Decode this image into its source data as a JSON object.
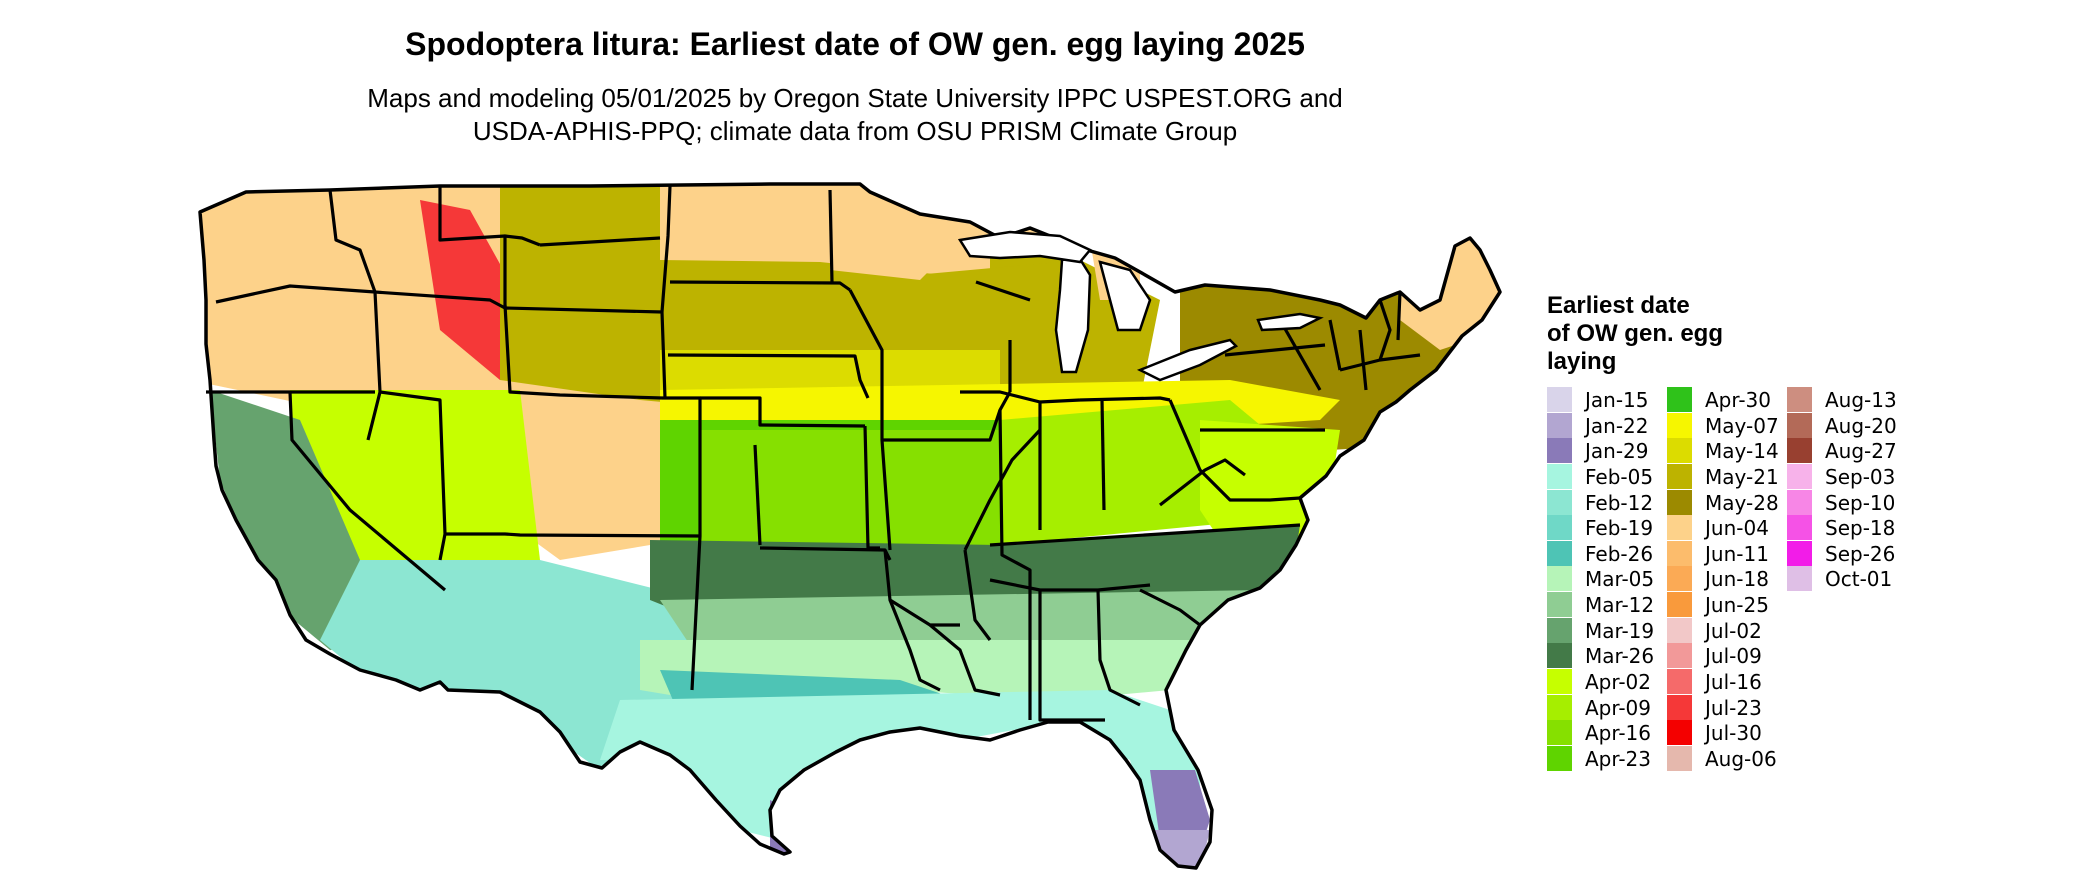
{
  "title": "Spodoptera litura: Earliest date of OW gen. egg laying 2025",
  "subtitle_lines": [
    "Maps and modeling 05/01/2025 by Oregon State University IPPC USPEST.ORG and",
    "USDA-APHIS-PPQ; climate data from OSU PRISM Climate Group"
  ],
  "legend": {
    "title_lines": [
      "Earliest date",
      "of OW gen. egg",
      "laying"
    ],
    "items": [
      {
        "label": "Jan-15",
        "color": "#d9d4ea"
      },
      {
        "label": "Jan-22",
        "color": "#b2a6d1"
      },
      {
        "label": "Jan-29",
        "color": "#8a7ab8"
      },
      {
        "label": "Feb-05",
        "color": "#a6f5e0"
      },
      {
        "label": "Feb-12",
        "color": "#8ce6d2"
      },
      {
        "label": "Feb-19",
        "color": "#6fd8c7"
      },
      {
        "label": "Feb-26",
        "color": "#4ec4b5"
      },
      {
        "label": "Mar-05",
        "color": "#b6f4b8"
      },
      {
        "label": "Mar-12",
        "color": "#8fcd93"
      },
      {
        "label": "Mar-19",
        "color": "#66a36e"
      },
      {
        "label": "Mar-26",
        "color": "#437a48"
      },
      {
        "label": "Apr-02",
        "color": "#c6ff00"
      },
      {
        "label": "Apr-09",
        "color": "#a6ee00"
      },
      {
        "label": "Apr-16",
        "color": "#86e000"
      },
      {
        "label": "Apr-23",
        "color": "#5fd400"
      },
      {
        "label": "Apr-30",
        "color": "#2fc21a"
      },
      {
        "label": "May-07",
        "color": "#f6f600"
      },
      {
        "label": "May-14",
        "color": "#dcdc00"
      },
      {
        "label": "May-21",
        "color": "#bdb300"
      },
      {
        "label": "May-28",
        "color": "#9c8a00"
      },
      {
        "label": "Jun-04",
        "color": "#fdd28a"
      },
      {
        "label": "Jun-11",
        "color": "#fcbc6c"
      },
      {
        "label": "Jun-18",
        "color": "#fbaa55"
      },
      {
        "label": "Jun-25",
        "color": "#f99a3c"
      },
      {
        "label": "Jul-02",
        "color": "#f2c8c8"
      },
      {
        "label": "Jul-09",
        "color": "#f29999"
      },
      {
        "label": "Jul-16",
        "color": "#f56a6a"
      },
      {
        "label": "Jul-23",
        "color": "#f53838"
      },
      {
        "label": "Jul-30",
        "color": "#f40000"
      },
      {
        "label": "Aug-06",
        "color": "#e5b8ad"
      },
      {
        "label": "Aug-13",
        "color": "#cd8e80"
      },
      {
        "label": "Aug-20",
        "color": "#b36a58"
      },
      {
        "label": "Aug-27",
        "color": "#984030"
      },
      {
        "label": "Sep-03",
        "color": "#f7b2ea"
      },
      {
        "label": "Sep-10",
        "color": "#f786e6"
      },
      {
        "label": "Sep-18",
        "color": "#f552e6"
      },
      {
        "label": "Sep-26",
        "color": "#f21ce8"
      },
      {
        "label": "Oct-01",
        "color": "#dfbfe6"
      }
    ]
  },
  "map_regions": [
    {
      "name": "northwest-mountains",
      "date": "Jun-04"
    },
    {
      "name": "high-rockies",
      "date": "Jul-23"
    },
    {
      "name": "wyoming-colorado-plateau",
      "date": "Jun-04"
    },
    {
      "name": "northern-plains",
      "date": "May-21"
    },
    {
      "name": "dakotas-north",
      "date": "Jun-04"
    },
    {
      "name": "upper-midwest",
      "date": "May-21"
    },
    {
      "name": "upper-peninsula-minnesota-north",
      "date": "Jun-04"
    },
    {
      "name": "northeast",
      "date": "May-28"
    },
    {
      "name": "maine-new-hampshire",
      "date": "Jun-04"
    },
    {
      "name": "central-plains",
      "date": "May-14"
    },
    {
      "name": "midwest-band",
      "date": "May-07"
    },
    {
      "name": "central-belt",
      "date": "Apr-23"
    },
    {
      "name": "kansas-missouri",
      "date": "Apr-16"
    },
    {
      "name": "ohio-valley",
      "date": "Apr-09"
    },
    {
      "name": "mid-atlantic",
      "date": "Apr-02"
    },
    {
      "name": "great-basin",
      "date": "Apr-02"
    },
    {
      "name": "central-valley-california",
      "date": "Mar-19"
    },
    {
      "name": "southwest-desert",
      "date": "Feb-12"
    },
    {
      "name": "southern-plains",
      "date": "Mar-26"
    },
    {
      "name": "mid-south",
      "date": "Mar-26"
    },
    {
      "name": "deep-south",
      "date": "Mar-12"
    },
    {
      "name": "gulf-states",
      "date": "Mar-05"
    },
    {
      "name": "central-texas",
      "date": "Feb-26"
    },
    {
      "name": "gulf-coast",
      "date": "Feb-05"
    },
    {
      "name": "south-texas-tip",
      "date": "Jan-29"
    },
    {
      "name": "south-florida",
      "date": "Jan-29"
    },
    {
      "name": "florida-keys",
      "date": "Jan-22"
    }
  ]
}
